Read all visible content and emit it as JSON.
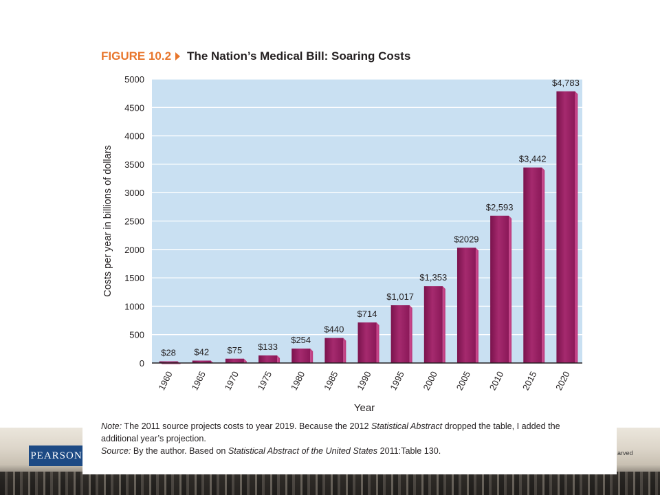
{
  "figure": {
    "number": "FIGURE 10.2",
    "title": "The Nation’s Medical Bill: Soaring Costs",
    "accent_color": "#e8762c",
    "arrow_icon": "play-triangle-icon"
  },
  "chart_data": {
    "type": "bar",
    "categories": [
      "1960",
      "1965",
      "1970",
      "1975",
      "1980",
      "1985",
      "1990",
      "1995",
      "2000",
      "2005",
      "2010",
      "2015",
      "2020"
    ],
    "values": [
      28,
      42,
      75,
      133,
      254,
      440,
      714,
      1017,
      1353,
      2029,
      2593,
      3442,
      4783
    ],
    "data_labels": [
      "$28",
      "$42",
      "$75",
      "$133",
      "$254",
      "$440",
      "$714",
      "$1,017",
      "$1,353",
      "$2029",
      "$2,593",
      "$3,442",
      "$4,783"
    ],
    "xlabel": "Year",
    "ylabel": "Costs per year in billions of dollars",
    "ylim": [
      0,
      5000
    ],
    "yticks": [
      0,
      500,
      1000,
      1500,
      2000,
      2500,
      3000,
      3500,
      4000,
      4500,
      5000
    ],
    "grid": true,
    "legend": "none",
    "colors": {
      "plot_background": "#c9e0f2",
      "gridline": "#ffffff",
      "bar": "#8e1a5c",
      "axis": "#231f20"
    }
  },
  "notes": {
    "note_label": "Note:",
    "note_text_1": " The 2011 source projects costs to year 2019. Because the 2012 ",
    "note_italic": "Statistical Abstract",
    "note_text_2": " dropped the table, I added the additional year’s projection.",
    "source_label": "Source:",
    "source_text_1": " By the author. Based on ",
    "source_italic": "Statistical Abstract of the United States",
    "source_text_2": " 2011:Table 130."
  },
  "footer": {
    "publisher_logo": "PEARSON",
    "copyright_fragment": "arved"
  }
}
